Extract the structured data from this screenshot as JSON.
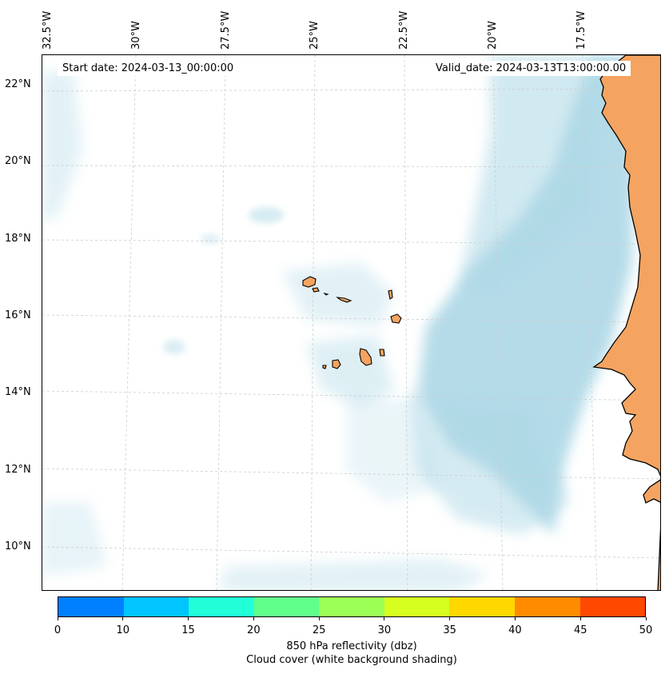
{
  "header": {
    "start_date": "Start date: 2024-03-13_00:00:00",
    "valid_date": "Valid_date: 2024-03-13T13:00:00.00"
  },
  "axes": {
    "longitude_ticks": [
      "32.5°W",
      "30°W",
      "27.5°W",
      "25°W",
      "22.5°W",
      "20°W",
      "17.5°W"
    ],
    "latitude_ticks": [
      "22°N",
      "20°N",
      "18°N",
      "16°N",
      "14°N",
      "12°N",
      "10°N"
    ]
  },
  "colorbar": {
    "ticks": [
      "0",
      "10",
      "15",
      "20",
      "25",
      "30",
      "35",
      "40",
      "45",
      "50"
    ],
    "colors": [
      "#0080ff",
      "#00c5ff",
      "#20ffd8",
      "#60ff8c",
      "#9cff55",
      "#d6ff20",
      "#ffd800",
      "#ff8c00",
      "#ff4800"
    ],
    "label_line1": "850 hPa reflectivity (dbz)",
    "label_line2": "Cloud cover (white background shading)"
  },
  "map_colors": {
    "land": "#f4a460",
    "cloud": "#add8e6",
    "coastline": "#000000",
    "gridline": "#cccccc"
  }
}
